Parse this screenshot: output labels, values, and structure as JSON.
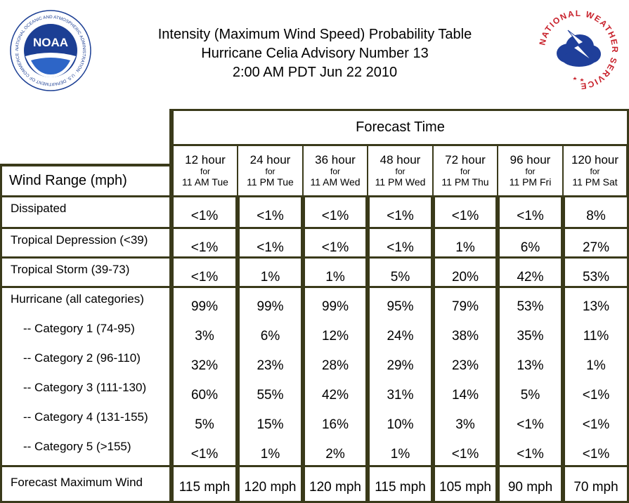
{
  "title": {
    "line1": "Intensity (Maximum Wind Speed) Probability Table",
    "line2": "Hurricane Celia Advisory Number 13",
    "line3": "2:00 AM PDT Jun 22 2010"
  },
  "logos": {
    "noaa_text": "NOAA",
    "noaa_ring": "NATIONAL OCEANIC AND ATMOSPHERIC ADMINISTRATION · U.S. DEPARTMENT OF COMMERCE ·",
    "nws_ring": "NATIONAL WEATHER SERVICE"
  },
  "table": {
    "forecast_time_label": "Forecast Time",
    "wind_range_label": "Wind Range (mph)",
    "columns": [
      {
        "hours": "12 hour",
        "for": "for",
        "when": "11 AM Tue"
      },
      {
        "hours": "24 hour",
        "for": "for",
        "when": "11 PM Tue"
      },
      {
        "hours": "36 hour",
        "for": "for",
        "when": "11 AM Wed"
      },
      {
        "hours": "48 hour",
        "for": "for",
        "when": "11 PM Wed"
      },
      {
        "hours": "72 hour",
        "for": "for",
        "when": "11 PM Thu"
      },
      {
        "hours": "96 hour",
        "for": "for",
        "when": "11 PM Fri"
      },
      {
        "hours": "120 hour",
        "for": "for",
        "when": "11 PM Sat"
      }
    ],
    "rows": [
      {
        "label": "Dissipated",
        "values": [
          "<1%",
          "<1%",
          "<1%",
          "<1%",
          "<1%",
          "<1%",
          "8%"
        ]
      },
      {
        "label": "Tropical Depression (<39)",
        "values": [
          "<1%",
          "<1%",
          "<1%",
          "<1%",
          "1%",
          "6%",
          "27%"
        ]
      },
      {
        "label": "Tropical Storm (39-73)",
        "values": [
          "<1%",
          "1%",
          "1%",
          "5%",
          "20%",
          "42%",
          "53%"
        ]
      },
      {
        "label": "Hurricane (all categories)",
        "values": [
          "99%",
          "99%",
          "99%",
          "95%",
          "79%",
          "53%",
          "13%"
        ]
      },
      {
        "label": "-- Category 1 (74-95)",
        "values": [
          "3%",
          "6%",
          "12%",
          "24%",
          "38%",
          "35%",
          "11%"
        ]
      },
      {
        "label": "-- Category 2 (96-110)",
        "values": [
          "32%",
          "23%",
          "28%",
          "29%",
          "23%",
          "13%",
          "1%"
        ]
      },
      {
        "label": "-- Category 3 (111-130)",
        "values": [
          "60%",
          "55%",
          "42%",
          "31%",
          "14%",
          "5%",
          "<1%"
        ]
      },
      {
        "label": "-- Category 4 (131-155)",
        "values": [
          "5%",
          "15%",
          "16%",
          "10%",
          "3%",
          "<1%",
          "<1%"
        ]
      },
      {
        "label": "-- Category 5 (>155)",
        "values": [
          "<1%",
          "1%",
          "2%",
          "1%",
          "<1%",
          "<1%",
          "<1%"
        ]
      },
      {
        "label": "Forecast Maximum Wind",
        "values": [
          "115 mph",
          "120 mph",
          "120 mph",
          "115 mph",
          "105 mph",
          "90 mph",
          "70 mph"
        ]
      }
    ]
  },
  "colors": {
    "border": "#3a3a1a",
    "nws_blue": "#1f3f9a",
    "nws_red": "#c8202a",
    "noaa_blue": "#1c3f94"
  }
}
